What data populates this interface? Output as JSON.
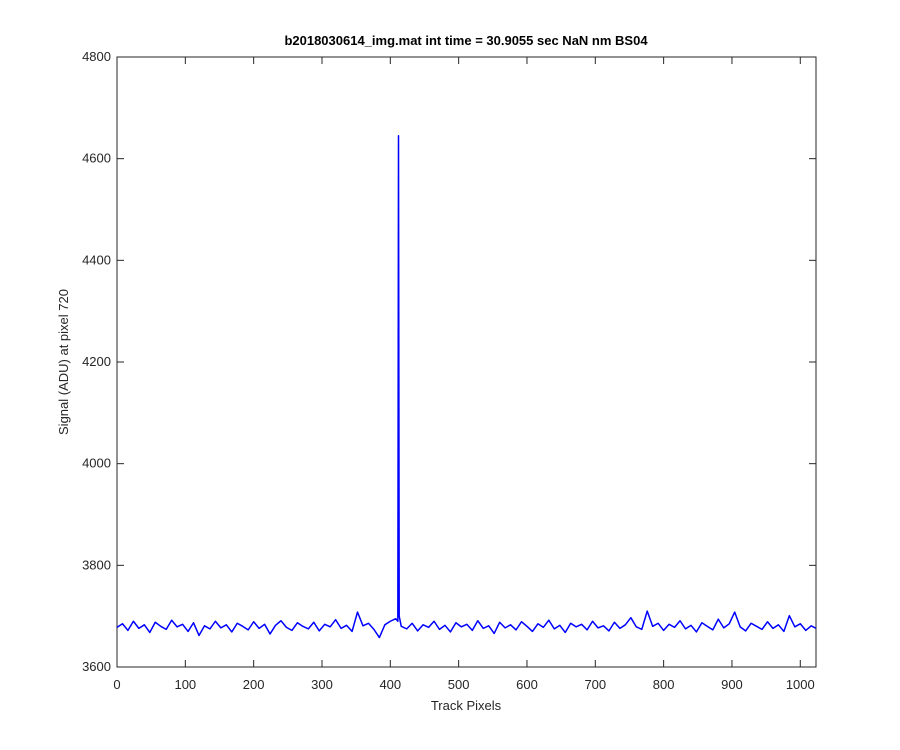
{
  "chart_data": {
    "type": "line",
    "title": "b2018030614_img.mat int time = 30.9055 sec  NaN nm BS04",
    "x_label": "Track Pixels",
    "y_label": "Signal (ADU) at pixel 720",
    "xlim": [
      0,
      1023
    ],
    "ylim": [
      3600,
      4800
    ],
    "xticks": [
      0,
      100,
      200,
      300,
      400,
      500,
      600,
      700,
      800,
      900,
      1000
    ],
    "yticks": [
      3600,
      3800,
      4000,
      4200,
      4400,
      4600,
      4800
    ],
    "grid": false,
    "x": [
      0,
      8,
      16,
      24,
      32,
      40,
      48,
      56,
      64,
      72,
      80,
      88,
      96,
      104,
      112,
      120,
      128,
      136,
      144,
      152,
      160,
      168,
      176,
      184,
      192,
      200,
      208,
      216,
      224,
      232,
      240,
      248,
      256,
      264,
      272,
      280,
      288,
      296,
      304,
      312,
      320,
      328,
      336,
      344,
      352,
      360,
      368,
      376,
      384,
      392,
      400,
      408,
      411,
      412,
      413,
      416,
      424,
      432,
      440,
      448,
      456,
      464,
      472,
      480,
      488,
      496,
      504,
      512,
      520,
      528,
      536,
      544,
      552,
      560,
      568,
      576,
      584,
      592,
      600,
      608,
      616,
      624,
      632,
      640,
      648,
      656,
      664,
      672,
      680,
      688,
      696,
      704,
      712,
      720,
      728,
      736,
      744,
      752,
      760,
      768,
      776,
      784,
      792,
      800,
      808,
      816,
      824,
      832,
      840,
      848,
      856,
      864,
      872,
      880,
      888,
      896,
      904,
      912,
      920,
      928,
      936,
      944,
      952,
      960,
      968,
      976,
      984,
      992,
      1000,
      1008,
      1016,
      1023
    ],
    "series": [
      {
        "color": "#0000ff",
        "values": [
          3678,
          3685,
          3672,
          3690,
          3676,
          3683,
          3668,
          3688,
          3680,
          3674,
          3692,
          3679,
          3684,
          3670,
          3687,
          3662,
          3681,
          3675,
          3690,
          3677,
          3683,
          3669,
          3686,
          3680,
          3673,
          3689,
          3676,
          3684,
          3665,
          3682,
          3691,
          3678,
          3672,
          3687,
          3680,
          3675,
          3688,
          3671,
          3684,
          3679,
          3693,
          3676,
          3682,
          3670,
          3708,
          3681,
          3686,
          3674,
          3658,
          3683,
          3690,
          3695,
          3690,
          4645,
          3700,
          3680,
          3675,
          3686,
          3671,
          3683,
          3678,
          3690,
          3674,
          3682,
          3669,
          3687,
          3679,
          3684,
          3672,
          3691,
          3676,
          3681,
          3666,
          3688,
          3677,
          3683,
          3673,
          3689,
          3680,
          3670,
          3685,
          3678,
          3692,
          3675,
          3682,
          3668,
          3686,
          3679,
          3684,
          3673,
          3690,
          3677,
          3681,
          3671,
          3688,
          3676,
          3683,
          3697,
          3679,
          3674,
          3710,
          3680,
          3686,
          3672,
          3684,
          3678,
          3691,
          3675,
          3682,
          3669,
          3687,
          3680,
          3673,
          3694,
          3677,
          3685,
          3708,
          3679,
          3671,
          3686,
          3680,
          3674,
          3689,
          3676,
          3683,
          3670,
          3701,
          3679,
          3685,
          3672,
          3681,
          3676
        ]
      }
    ]
  }
}
